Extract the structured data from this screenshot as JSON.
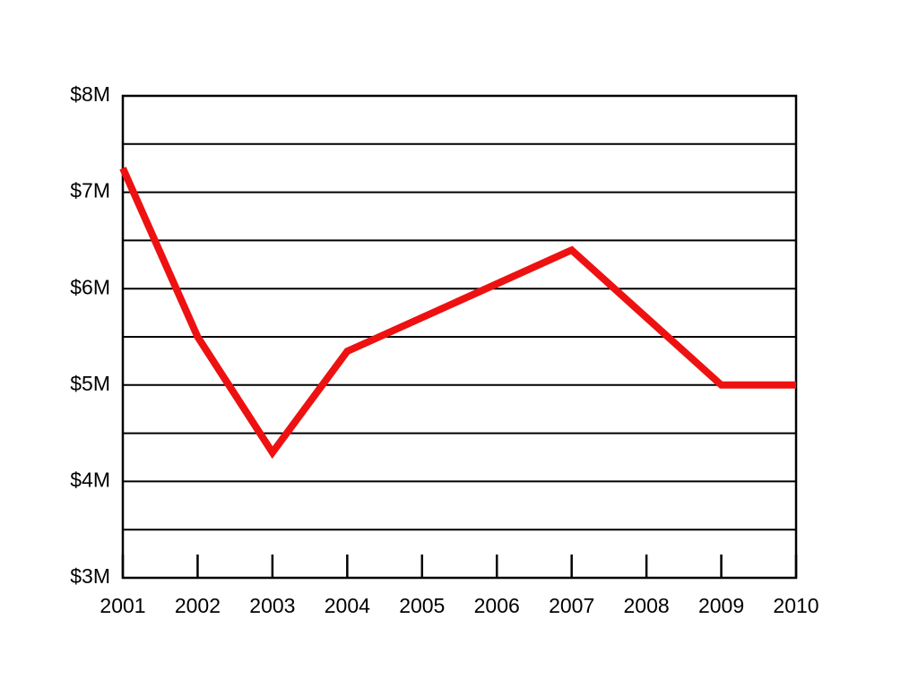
{
  "chart_data": {
    "type": "line",
    "x": [
      2001,
      2002,
      2003,
      2004,
      2005,
      2006,
      2007,
      2008,
      2009,
      2010
    ],
    "series": [
      {
        "color": "#ee1111",
        "values": [
          7250000,
          5500000,
          4300000,
          5350000,
          5700000,
          6050000,
          6400000,
          5700000,
          5000000,
          5000000
        ]
      }
    ],
    "xlim": [
      2001,
      2010
    ],
    "xticks": [
      2001,
      2002,
      2003,
      2004,
      2005,
      2006,
      2007,
      2008,
      2009,
      2010
    ],
    "ylim": [
      3000000,
      8000000
    ],
    "yticks": [
      {
        "value": 3000000,
        "label": "$3M"
      },
      {
        "value": 4000000,
        "label": "$4M"
      },
      {
        "value": 5000000,
        "label": "$5M"
      },
      {
        "value": 6000000,
        "label": "$6M"
      },
      {
        "value": 7000000,
        "label": "$7M"
      },
      {
        "value": 8000000,
        "label": "$8M"
      }
    ],
    "minor_yticks": [
      3500000,
      4500000,
      5500000,
      6500000,
      7500000
    ],
    "grid": true
  }
}
